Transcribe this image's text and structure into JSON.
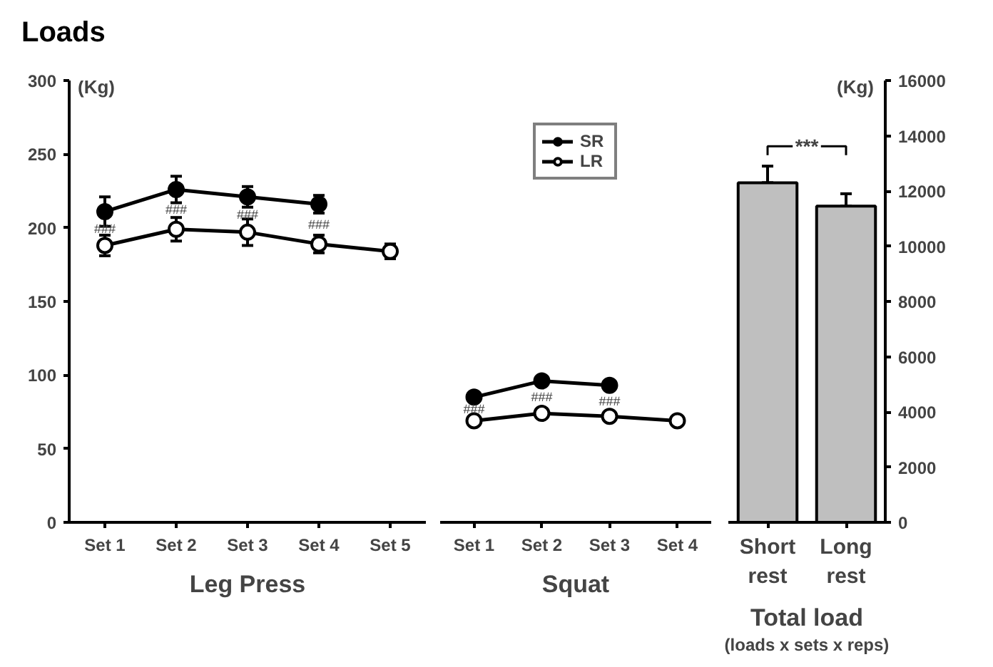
{
  "chart_data": [
    {
      "type": "line",
      "title": "Loads",
      "ylabel": "(Kg)",
      "xlabel": "Leg Press",
      "categories": [
        "Set 1",
        "Set 2",
        "Set 3",
        "Set 4",
        "Set 5"
      ],
      "ylim": [
        0,
        300
      ],
      "yticks": [
        0,
        50,
        100,
        150,
        200,
        250,
        300
      ],
      "marker": "circle",
      "grid": false,
      "legend": false,
      "series": [
        {
          "color": "#000000",
          "values": [
            211,
            226,
            221,
            216,
            null
          ],
          "errors": [
            10,
            9,
            7,
            6,
            null
          ]
        },
        {
          "color": "#000000",
          "values": [
            188,
            199,
            197,
            189,
            184
          ],
          "errors": [
            7,
            8,
            9,
            6,
            5
          ]
        }
      ],
      "annotations": [
        "###",
        "###",
        "###",
        "###"
      ]
    },
    {
      "type": "line",
      "xlabel": "Squat",
      "categories": [
        "Set 1",
        "Set 2",
        "Set 3",
        "Set 4"
      ],
      "ylim": [
        0,
        300
      ],
      "tick_labels": "x",
      "marker": "circle",
      "grid": false,
      "legend": "top",
      "series": [
        {
          "name": "SR",
          "color": "#000000",
          "values": [
            85,
            96,
            93,
            null
          ],
          "errors": [
            3,
            3,
            3,
            null
          ]
        },
        {
          "name": "LR",
          "color": "#000000",
          "values": [
            69,
            74,
            72,
            69
          ],
          "errors": [
            3,
            3,
            3,
            2
          ]
        }
      ],
      "annotations": [
        "###",
        "###",
        "###"
      ]
    },
    {
      "type": "bar",
      "xlabel": "Total load",
      "y2label": "(Kg)",
      "categories": [
        "Short rest",
        "Long rest"
      ],
      "y2lim": [
        0,
        16000
      ],
      "y2ticks": [
        0,
        2000,
        4000,
        6000,
        8000,
        10000,
        12000,
        14000,
        16000
      ],
      "grid": false,
      "legend": false,
      "series": [
        {
          "color": "#bfbfbf",
          "axis": "y2",
          "values": [
            12300,
            11450
          ],
          "errors": [
            [
              12300,
              12900
            ],
            [
              11450,
              11900
            ]
          ]
        }
      ],
      "annotations": [
        "***",
        "(loads x sets x reps)"
      ]
    }
  ]
}
